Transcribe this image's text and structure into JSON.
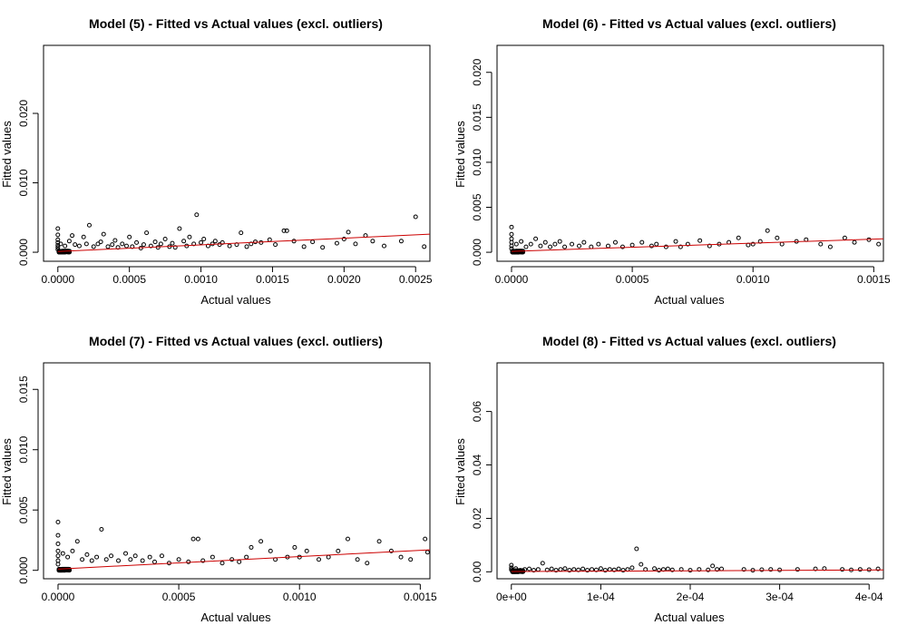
{
  "colors": {
    "points": "#000000",
    "fit_line": "#cc0000",
    "background": "#ffffff"
  },
  "chart_data": [
    {
      "type": "scatter",
      "title": "Model (5) - Fitted vs Actual values (excl. outliers)",
      "xlabel": "Actual values",
      "ylabel": "Fitted values",
      "xlim": [
        -0.0001,
        0.0026
      ],
      "ylim": [
        -0.0013,
        0.0298
      ],
      "xticks": [
        0,
        0.0005,
        0.001,
        0.0015,
        0.002,
        0.0025
      ],
      "xtick_labels": [
        "0.0000",
        "0.0005",
        "0.0010",
        "0.0015",
        "0.0020",
        "0.0025"
      ],
      "yticks": [
        0,
        0.01,
        0.02
      ],
      "ytick_labels": [
        "0.000",
        "0.010",
        "0.020"
      ],
      "fit_line": [
        [
          0,
          0.0001
        ],
        [
          0.0026,
          0.0026
        ]
      ],
      "points": [
        [
          0,
          0.0034
        ],
        [
          0,
          0.0025
        ],
        [
          0,
          0.0018
        ],
        [
          0,
          0.0014
        ],
        [
          0,
          0.001
        ],
        [
          0,
          0.0007
        ],
        [
          0,
          0.0004
        ],
        [
          2e-05,
          0.0012
        ],
        [
          5e-05,
          0.0009
        ],
        [
          8e-05,
          0.0016
        ],
        [
          0.0001,
          0.0024
        ],
        [
          0.00012,
          0.0011
        ],
        [
          0.00015,
          0.0009
        ],
        [
          0.00018,
          0.0022
        ],
        [
          0.0002,
          0.0012
        ],
        [
          0.00022,
          0.0039
        ],
        [
          0.00025,
          0.0008
        ],
        [
          0.00028,
          0.0012
        ],
        [
          0.0003,
          0.0015
        ],
        [
          0.00032,
          0.0026
        ],
        [
          0.00035,
          0.0008
        ],
        [
          0.00038,
          0.0011
        ],
        [
          0.0004,
          0.0017
        ],
        [
          0.00042,
          0.0007
        ],
        [
          0.00045,
          0.0012
        ],
        [
          0.00048,
          0.0009
        ],
        [
          0.0005,
          0.0022
        ],
        [
          0.00052,
          0.0008
        ],
        [
          0.00055,
          0.0014
        ],
        [
          0.00058,
          0.0006
        ],
        [
          0.0006,
          0.0011
        ],
        [
          0.00062,
          0.0028
        ],
        [
          0.00065,
          0.0009
        ],
        [
          0.00068,
          0.0015
        ],
        [
          0.0007,
          0.0007
        ],
        [
          0.00072,
          0.0012
        ],
        [
          0.00075,
          0.0019
        ],
        [
          0.00078,
          0.0008
        ],
        [
          0.0008,
          0.0013
        ],
        [
          0.00082,
          0.0007
        ],
        [
          0.00085,
          0.0034
        ],
        [
          0.00088,
          0.0016
        ],
        [
          0.0009,
          0.0009
        ],
        [
          0.00092,
          0.0022
        ],
        [
          0.00095,
          0.0012
        ],
        [
          0.00097,
          0.0054
        ],
        [
          0.001,
          0.0014
        ],
        [
          0.00102,
          0.0019
        ],
        [
          0.00105,
          0.0009
        ],
        [
          0.00108,
          0.0012
        ],
        [
          0.0011,
          0.0016
        ],
        [
          0.00113,
          0.0011
        ],
        [
          0.00115,
          0.0014
        ],
        [
          0.0012,
          0.0009
        ],
        [
          0.00125,
          0.0011
        ],
        [
          0.00128,
          0.0028
        ],
        [
          0.00132,
          0.0008
        ],
        [
          0.00135,
          0.0012
        ],
        [
          0.00138,
          0.0015
        ],
        [
          0.00142,
          0.0014
        ],
        [
          0.00148,
          0.0018
        ],
        [
          0.00152,
          0.0011
        ],
        [
          0.00158,
          0.0031
        ],
        [
          0.0016,
          0.0031
        ],
        [
          0.00165,
          0.0016
        ],
        [
          0.00172,
          0.0008
        ],
        [
          0.00178,
          0.0015
        ],
        [
          0.00185,
          0.0007
        ],
        [
          0.00195,
          0.0013
        ],
        [
          0.002,
          0.0019
        ],
        [
          0.00203,
          0.0029
        ],
        [
          0.00208,
          0.0012
        ],
        [
          0.00215,
          0.0024
        ],
        [
          0.0022,
          0.0016
        ],
        [
          0.00228,
          0.0009
        ],
        [
          0.0024,
          0.0016
        ],
        [
          0.0025,
          0.0051
        ],
        [
          0.00256,
          0.0008
        ]
      ]
    },
    {
      "type": "scatter",
      "title": "Model (6) - Fitted vs Actual values (excl. outliers)",
      "xlabel": "Actual values",
      "ylabel": "Fitted values",
      "xlim": [
        -6e-05,
        0.00154
      ],
      "ylim": [
        -0.001,
        0.023
      ],
      "xticks": [
        0,
        0.0005,
        0.001,
        0.0015
      ],
      "xtick_labels": [
        "0.0000",
        "0.0005",
        "0.0010",
        "0.0015"
      ],
      "yticks": [
        0,
        0.005,
        0.01,
        0.015,
        0.02
      ],
      "ytick_labels": [
        "0.000",
        "0.005",
        "0.010",
        "0.015",
        "0.020"
      ],
      "fit_line": [
        [
          0,
          0.0001
        ],
        [
          0.00154,
          0.0015
        ]
      ],
      "points": [
        [
          0,
          0.0028
        ],
        [
          0,
          0.002
        ],
        [
          0,
          0.0015
        ],
        [
          0,
          0.0011
        ],
        [
          0,
          0.0007
        ],
        [
          0,
          0.0004
        ],
        [
          2e-05,
          0.0009
        ],
        [
          4e-05,
          0.0012
        ],
        [
          6e-05,
          0.0006
        ],
        [
          8e-05,
          0.0009
        ],
        [
          0.0001,
          0.0015
        ],
        [
          0.00012,
          0.0007
        ],
        [
          0.00014,
          0.0011
        ],
        [
          0.00016,
          0.0006
        ],
        [
          0.00018,
          0.0009
        ],
        [
          0.0002,
          0.0012
        ],
        [
          0.00022,
          0.0006
        ],
        [
          0.00025,
          0.0009
        ],
        [
          0.00028,
          0.0007
        ],
        [
          0.0003,
          0.0011
        ],
        [
          0.00033,
          0.0006
        ],
        [
          0.00036,
          0.0009
        ],
        [
          0.0004,
          0.0007
        ],
        [
          0.00043,
          0.0011
        ],
        [
          0.00046,
          0.0006
        ],
        [
          0.0005,
          0.0008
        ],
        [
          0.00054,
          0.0011
        ],
        [
          0.00058,
          0.0007
        ],
        [
          0.0006,
          0.0009
        ],
        [
          0.00064,
          0.0006
        ],
        [
          0.00068,
          0.0012
        ],
        [
          0.0007,
          0.0006
        ],
        [
          0.00073,
          0.0009
        ],
        [
          0.00078,
          0.0013
        ],
        [
          0.00082,
          0.0007
        ],
        [
          0.00086,
          0.0009
        ],
        [
          0.0009,
          0.0011
        ],
        [
          0.00094,
          0.0016
        ],
        [
          0.00098,
          0.0008
        ],
        [
          0.001,
          0.0009
        ],
        [
          0.00103,
          0.0012
        ],
        [
          0.00106,
          0.0024
        ],
        [
          0.0011,
          0.0016
        ],
        [
          0.00112,
          0.0009
        ],
        [
          0.00118,
          0.0012
        ],
        [
          0.00122,
          0.0014
        ],
        [
          0.00128,
          0.0009
        ],
        [
          0.00132,
          0.0006
        ],
        [
          0.00138,
          0.0016
        ],
        [
          0.00142,
          0.0011
        ],
        [
          0.00148,
          0.0014
        ],
        [
          0.00152,
          0.0009
        ]
      ]
    },
    {
      "type": "scatter",
      "title": "Model (7) - Fitted vs Actual values (excl. outliers)",
      "xlabel": "Actual values",
      "ylabel": "Fitted values",
      "xlim": [
        -6e-05,
        0.00154
      ],
      "ylim": [
        -0.0007,
        0.0172
      ],
      "xticks": [
        0,
        0.0005,
        0.001,
        0.0015
      ],
      "xtick_labels": [
        "0.0000",
        "0.0005",
        "0.0010",
        "0.0015"
      ],
      "yticks": [
        0,
        0.005,
        0.01,
        0.015
      ],
      "ytick_labels": [
        "0.000",
        "0.005",
        "0.010",
        "0.015"
      ],
      "fit_line": [
        [
          0,
          0.0001
        ],
        [
          0.00154,
          0.0017
        ]
      ],
      "points": [
        [
          0,
          0.004
        ],
        [
          0,
          0.0029
        ],
        [
          0,
          0.0022
        ],
        [
          0,
          0.0016
        ],
        [
          0,
          0.0012
        ],
        [
          0,
          0.0008
        ],
        [
          0,
          0.0005
        ],
        [
          2e-05,
          0.0014
        ],
        [
          4e-05,
          0.0011
        ],
        [
          6e-05,
          0.0016
        ],
        [
          8e-05,
          0.0024
        ],
        [
          0.0001,
          0.0009
        ],
        [
          0.00012,
          0.0013
        ],
        [
          0.00014,
          0.0008
        ],
        [
          0.00016,
          0.0011
        ],
        [
          0.00018,
          0.0034
        ],
        [
          0.0002,
          0.0009
        ],
        [
          0.00022,
          0.0012
        ],
        [
          0.00025,
          0.0008
        ],
        [
          0.00028,
          0.0014
        ],
        [
          0.0003,
          0.0009
        ],
        [
          0.00032,
          0.0012
        ],
        [
          0.00035,
          0.0008
        ],
        [
          0.00038,
          0.0011
        ],
        [
          0.0004,
          0.0007
        ],
        [
          0.00043,
          0.0012
        ],
        [
          0.00046,
          0.0006
        ],
        [
          0.0005,
          0.0009
        ],
        [
          0.00054,
          0.0007
        ],
        [
          0.00056,
          0.0026
        ],
        [
          0.00058,
          0.0026
        ],
        [
          0.0006,
          0.0008
        ],
        [
          0.00064,
          0.0011
        ],
        [
          0.00068,
          0.0006
        ],
        [
          0.00072,
          0.0009
        ],
        [
          0.00075,
          0.0007
        ],
        [
          0.00078,
          0.0011
        ],
        [
          0.0008,
          0.0019
        ],
        [
          0.00084,
          0.0024
        ],
        [
          0.00088,
          0.0016
        ],
        [
          0.0009,
          0.0009
        ],
        [
          0.00095,
          0.0011
        ],
        [
          0.00098,
          0.0019
        ],
        [
          0.001,
          0.0011
        ],
        [
          0.00103,
          0.0016
        ],
        [
          0.00108,
          0.0009
        ],
        [
          0.00112,
          0.0011
        ],
        [
          0.00116,
          0.0016
        ],
        [
          0.0012,
          0.0026
        ],
        [
          0.00124,
          0.0009
        ],
        [
          0.00128,
          0.0006
        ],
        [
          0.00133,
          0.0024
        ],
        [
          0.00138,
          0.0016
        ],
        [
          0.00142,
          0.0011
        ],
        [
          0.00146,
          0.0009
        ],
        [
          0.00152,
          0.0026
        ],
        [
          0.00153,
          0.0015
        ]
      ]
    },
    {
      "type": "scatter",
      "title": "Model (8) - Fitted vs Actual values (excl. outliers)",
      "xlabel": "Actual values",
      "ylabel": "Fitted values",
      "xlim": [
        -1.6e-05,
        0.000416
      ],
      "ylim": [
        -0.0026,
        0.0782
      ],
      "xticks": [
        0,
        0.0001,
        0.0002,
        0.0003,
        0.0004
      ],
      "xtick_labels": [
        "0e+00",
        "1e-04",
        "2e-04",
        "3e-04",
        "4e-04"
      ],
      "yticks": [
        0,
        0.02,
        0.04,
        0.06
      ],
      "ytick_labels": [
        "0.00",
        "0.02",
        "0.04",
        "0.06"
      ],
      "fit_line": [
        [
          0,
          0.0001
        ],
        [
          0.000416,
          0.0007
        ]
      ],
      "points": [
        [
          0,
          0.0025
        ],
        [
          0,
          0.0015
        ],
        [
          0,
          0.0008
        ],
        [
          5e-06,
          0.0012
        ],
        [
          1e-05,
          0.0006
        ],
        [
          1.5e-05,
          0.0009
        ],
        [
          2e-05,
          0.0011
        ],
        [
          2.5e-05,
          0.0006
        ],
        [
          3e-05,
          0.0009
        ],
        [
          3.5e-05,
          0.0032
        ],
        [
          4e-05,
          0.0007
        ],
        [
          4.5e-05,
          0.0011
        ],
        [
          5e-05,
          0.0006
        ],
        [
          5.5e-05,
          0.0009
        ],
        [
          6e-05,
          0.0012
        ],
        [
          6.5e-05,
          0.0006
        ],
        [
          7e-05,
          0.0009
        ],
        [
          7.5e-05,
          0.0007
        ],
        [
          8e-05,
          0.0011
        ],
        [
          8.5e-05,
          0.0006
        ],
        [
          9e-05,
          0.0009
        ],
        [
          9.5e-05,
          0.0007
        ],
        [
          0.0001,
          0.0012
        ],
        [
          0.000105,
          0.0006
        ],
        [
          0.00011,
          0.0009
        ],
        [
          0.000115,
          0.0007
        ],
        [
          0.00012,
          0.0011
        ],
        [
          0.000125,
          0.0006
        ],
        [
          0.00013,
          0.0009
        ],
        [
          0.000135,
          0.0015
        ],
        [
          0.00014,
          0.0086
        ],
        [
          0.000145,
          0.0028
        ],
        [
          0.00015,
          0.0009
        ],
        [
          0.00016,
          0.0012
        ],
        [
          0.000165,
          0.0006
        ],
        [
          0.00017,
          0.0009
        ],
        [
          0.000175,
          0.0011
        ],
        [
          0.00018,
          0.0007
        ],
        [
          0.00019,
          0.0009
        ],
        [
          0.0002,
          0.0006
        ],
        [
          0.00021,
          0.0009
        ],
        [
          0.00022,
          0.0007
        ],
        [
          0.000225,
          0.0022
        ],
        [
          0.00023,
          0.0009
        ],
        [
          0.000235,
          0.0011
        ],
        [
          0.00026,
          0.0009
        ],
        [
          0.00027,
          0.0006
        ],
        [
          0.00028,
          0.0008
        ],
        [
          0.00029,
          0.0009
        ],
        [
          0.0003,
          0.0007
        ],
        [
          0.00032,
          0.0009
        ],
        [
          0.00034,
          0.0011
        ],
        [
          0.00035,
          0.0012
        ],
        [
          0.00037,
          0.0009
        ],
        [
          0.00038,
          0.0007
        ],
        [
          0.00039,
          0.0009
        ],
        [
          0.0004,
          0.0008
        ],
        [
          0.00041,
          0.0011
        ]
      ]
    }
  ]
}
